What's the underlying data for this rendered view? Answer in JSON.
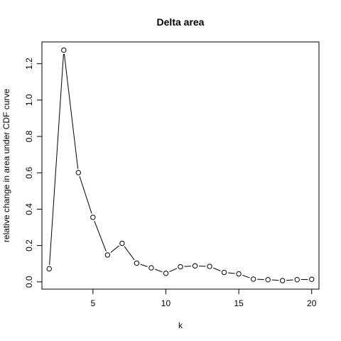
{
  "chart_data": {
    "type": "line",
    "title": "Delta area",
    "xlabel": "k",
    "ylabel": "relative change in area under CDF curve",
    "x": [
      2,
      3,
      4,
      5,
      6,
      7,
      8,
      9,
      10,
      11,
      12,
      13,
      14,
      15,
      16,
      17,
      18,
      19,
      20
    ],
    "series": [
      {
        "values": [
          0.072,
          1.275,
          0.601,
          0.355,
          0.148,
          0.212,
          0.103,
          0.077,
          0.047,
          0.083,
          0.088,
          0.085,
          0.052,
          0.044,
          0.015,
          0.012,
          0.007,
          0.012,
          0.014
        ]
      }
    ],
    "xlim": [
      1.5,
      20.5
    ],
    "ylim": [
      -0.04,
      1.32
    ],
    "xticks": [
      5,
      10,
      15,
      20
    ],
    "yticks": [
      0.0,
      0.2,
      0.4,
      0.6,
      0.8,
      1.0,
      1.2
    ],
    "xtick_labels": [
      "5",
      "10",
      "15",
      "20"
    ],
    "ytick_labels": [
      "0.0",
      "0.2",
      "0.4",
      "0.6",
      "0.8",
      "1.0",
      "1.2"
    ],
    "grid": false,
    "marker": "open-circle",
    "line_color": "#000000"
  }
}
